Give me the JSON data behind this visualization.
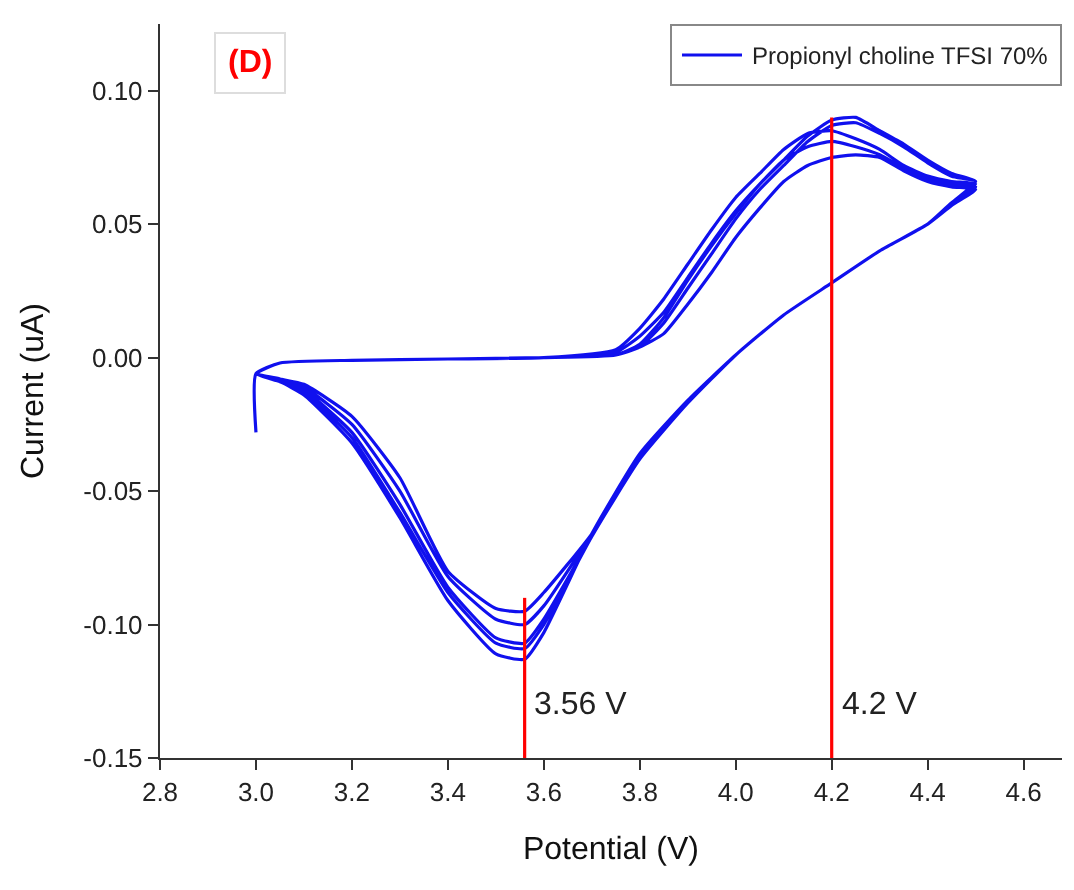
{
  "chart_data": {
    "type": "line",
    "xlabel": "Potential (V)",
    "ylabel": "Current (uA)",
    "xlim": [
      2.8,
      4.68
    ],
    "ylim": [
      -0.15,
      0.125
    ],
    "xticks": [
      2.8,
      3.2,
      3.4,
      3.6,
      3.8,
      4.2,
      4.4,
      4.6,
      {
        "value": 3.0,
        "label": "3.0"
      },
      {
        "value": 4.0,
        "label": "4.0"
      }
    ],
    "yticks": [
      {
        "value": -0.15,
        "label": "-0.15"
      },
      {
        "value": -0.1,
        "label": "-0.10"
      },
      {
        "value": -0.05,
        "label": "-0.05"
      },
      {
        "value": 0,
        "label": "0.00"
      },
      {
        "value": 0.05,
        "label": "0.05"
      },
      {
        "value": 0.1,
        "label": "0.10"
      }
    ],
    "legend": "top right",
    "marker": "none",
    "line_style": "solid",
    "annotations": [
      "(D)",
      {
        "text": "3.56 V",
        "x": 3.56,
        "y": -0.13
      },
      {
        "text": "4.2 V",
        "x": 4.2,
        "y": -0.13
      }
    ],
    "series": [
      {
        "name": "Propionyl choline TFSI 70%",
        "color": "#1010ee",
        "x": [
          3.0,
          3.0,
          3.05,
          3.2,
          3.4,
          3.6,
          3.75,
          3.8,
          3.85,
          3.9,
          3.95,
          4.0,
          4.05,
          4.1,
          4.15,
          4.2,
          4.25,
          4.3,
          4.35,
          4.4,
          4.45,
          4.5,
          4.45,
          4.4,
          4.3,
          4.2,
          4.1,
          4.0,
          3.9,
          3.8,
          3.7,
          3.6,
          3.56,
          3.5,
          3.4,
          3.3,
          3.2,
          3.1,
          3.05,
          3.0,
          3.05,
          3.2,
          3.4,
          3.6,
          3.75,
          3.8,
          3.85,
          3.9,
          3.95,
          4.0,
          4.05,
          4.1,
          4.15,
          4.2,
          4.25,
          4.3,
          4.35,
          4.4,
          4.45,
          4.5,
          4.45,
          4.4,
          4.3,
          4.2,
          4.1,
          4.0,
          3.9,
          3.8,
          3.7,
          3.6,
          3.56,
          3.5,
          3.4,
          3.3,
          3.2,
          3.1,
          3.05,
          3.0,
          3.05,
          3.2,
          3.4,
          3.6,
          3.75,
          3.8,
          3.85,
          3.9,
          3.95,
          4.0,
          4.05,
          4.1,
          4.15,
          4.2,
          4.25,
          4.3,
          4.35,
          4.4,
          4.45,
          4.5,
          4.45,
          4.4,
          4.3,
          4.2,
          4.1,
          4.0,
          3.9,
          3.8,
          3.7,
          3.6,
          3.56,
          3.5,
          3.4,
          3.3,
          3.2,
          3.1,
          3.05,
          3.0,
          3.05,
          3.2,
          3.4,
          3.6,
          3.75,
          3.8,
          3.85,
          3.9,
          3.95,
          4.0,
          4.05,
          4.1,
          4.15,
          4.2,
          4.25,
          4.3,
          4.35,
          4.4,
          4.45,
          4.5,
          4.45,
          4.4,
          4.3,
          4.2,
          4.1,
          4.0,
          3.9,
          3.8,
          3.7,
          3.6,
          3.56,
          3.5,
          3.4,
          3.3,
          3.2,
          3.1,
          3.05,
          3.0,
          3.05,
          3.2,
          3.4,
          3.6,
          3.75,
          3.8,
          3.85,
          3.9,
          3.95,
          4.0,
          4.05,
          4.1,
          4.15,
          4.2,
          4.25,
          4.3,
          4.35,
          4.4,
          4.45,
          4.5,
          4.45,
          4.4,
          4.3,
          4.2,
          4.1,
          4.0,
          3.9,
          3.8,
          3.7,
          3.6,
          3.56,
          3.5,
          3.4,
          3.3,
          3.2,
          3.1,
          3.05,
          3.0
        ],
        "values": [
          -0.028,
          -0.006,
          -0.002,
          -0.001,
          -0.0005,
          0,
          0.001,
          0.004,
          0.009,
          0.02,
          0.032,
          0.045,
          0.056,
          0.066,
          0.072,
          0.075,
          0.076,
          0.075,
          0.07,
          0.066,
          0.064,
          0.063,
          0.057,
          0.05,
          0.04,
          0.028,
          0.016,
          0.001,
          -0.016,
          -0.036,
          -0.066,
          -0.088,
          -0.095,
          -0.094,
          -0.08,
          -0.045,
          -0.022,
          -0.01,
          -0.008,
          -0.006,
          -0.002,
          -0.001,
          -0.0005,
          0,
          0.002,
          0.008,
          0.017,
          0.03,
          0.043,
          0.055,
          0.065,
          0.074,
          0.079,
          0.081,
          0.079,
          0.076,
          0.071,
          0.067,
          0.065,
          0.064,
          0.058,
          0.05,
          0.04,
          0.028,
          0.016,
          0.001,
          -0.016,
          -0.036,
          -0.066,
          -0.093,
          -0.1,
          -0.098,
          -0.082,
          -0.05,
          -0.025,
          -0.011,
          -0.008,
          -0.006,
          -0.002,
          -0.001,
          -0.0005,
          0,
          0.003,
          0.011,
          0.022,
          0.035,
          0.048,
          0.06,
          0.069,
          0.078,
          0.084,
          0.085,
          0.082,
          0.078,
          0.072,
          0.068,
          0.066,
          0.065,
          0.058,
          0.05,
          0.04,
          0.028,
          0.016,
          0.001,
          -0.017,
          -0.037,
          -0.067,
          -0.098,
          -0.107,
          -0.105,
          -0.086,
          -0.055,
          -0.028,
          -0.012,
          -0.008,
          -0.006,
          -0.002,
          -0.001,
          -0.0005,
          0,
          0.001,
          0.004,
          0.013,
          0.026,
          0.039,
          0.052,
          0.063,
          0.072,
          0.081,
          0.087,
          0.088,
          0.084,
          0.079,
          0.073,
          0.068,
          0.066,
          0.058,
          0.05,
          0.04,
          0.028,
          0.016,
          0.001,
          -0.017,
          -0.038,
          -0.067,
          -0.1,
          -0.109,
          -0.107,
          -0.088,
          -0.058,
          -0.03,
          -0.013,
          -0.009,
          -0.006,
          -0.002,
          -0.001,
          -0.0005,
          0,
          0.001,
          0.005,
          0.015,
          0.029,
          0.042,
          0.054,
          0.065,
          0.074,
          0.083,
          0.089,
          0.09,
          0.085,
          0.08,
          0.074,
          0.069,
          0.066,
          0.058,
          0.05,
          0.04,
          0.028,
          0.016,
          0.001,
          -0.016,
          -0.036,
          -0.066,
          -0.103,
          -0.113,
          -0.111,
          -0.091,
          -0.06,
          -0.032,
          -0.014,
          -0.009,
          -0.006
        ]
      },
      {
        "color": "#ff0000",
        "x": [
          3.56,
          3.56
        ],
        "values": [
          -0.09,
          -0.15
        ]
      },
      {
        "color": "#ff0000",
        "x": [
          4.2,
          4.2
        ],
        "values": [
          0.09,
          -0.15
        ]
      }
    ]
  }
}
